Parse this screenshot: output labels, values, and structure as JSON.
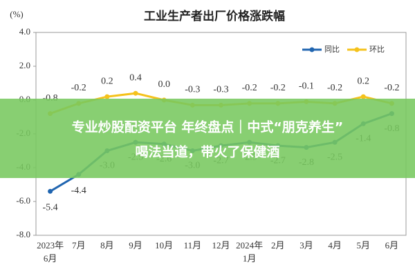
{
  "chart_data": {
    "type": "line",
    "title": "工业生产者出厂价格涨跌幅",
    "y_unit": "(%)",
    "categories": [
      "2023年\n6月",
      "7月",
      "8月",
      "9月",
      "10月",
      "11月",
      "12月",
      "2024年\n1月",
      "2月",
      "3月",
      "4月",
      "5月",
      "6月"
    ],
    "series": [
      {
        "name": "同比",
        "color": "#2065b0",
        "values": [
          -5.4,
          -4.4,
          -3.0,
          -2.5,
          -2.6,
          -3.0,
          -2.7,
          -2.5,
          -2.7,
          -2.8,
          -2.5,
          -1.4,
          -0.8
        ],
        "value_labels": [
          "-5.4",
          "-4.4",
          "-3.0",
          "-2.5",
          "-2.6",
          "-3.0",
          "-2.7",
          "-2.5",
          "-2.7",
          "-2.8",
          "-2.5",
          "-1.4",
          "-0.8"
        ]
      },
      {
        "name": "环比",
        "color": "#f5c21b",
        "values": [
          -0.8,
          -0.2,
          0.2,
          0.4,
          0.0,
          -0.3,
          -0.3,
          -0.2,
          -0.2,
          -0.1,
          -0.2,
          0.2,
          -0.2
        ],
        "value_labels": [
          "-0.8",
          "-0.2",
          "0.2",
          "0.4",
          "0.0",
          "-0.3",
          "-0.3",
          "-0.2",
          "-0.2",
          "-0.1",
          "-0.2",
          "0.2",
          "-0.2"
        ]
      }
    ],
    "ylim": [
      -8,
      4
    ],
    "yticks": [
      {
        "value": -8,
        "label": "-8.0"
      },
      {
        "value": -6,
        "label": "-6.0"
      },
      {
        "value": -4,
        "label": "-4.0"
      },
      {
        "value": -2,
        "label": "-2.0"
      },
      {
        "value": 0,
        "label": "0.0"
      },
      {
        "value": 2,
        "label": "2.0"
      },
      {
        "value": 4,
        "label": "4.0"
      }
    ],
    "legend": "upper right"
  },
  "banner": {
    "lines": [
      "专业炒股配资平台 年终盘点｜中式“朋克养生”",
      "喝法当道，带火了保健酒"
    ]
  }
}
